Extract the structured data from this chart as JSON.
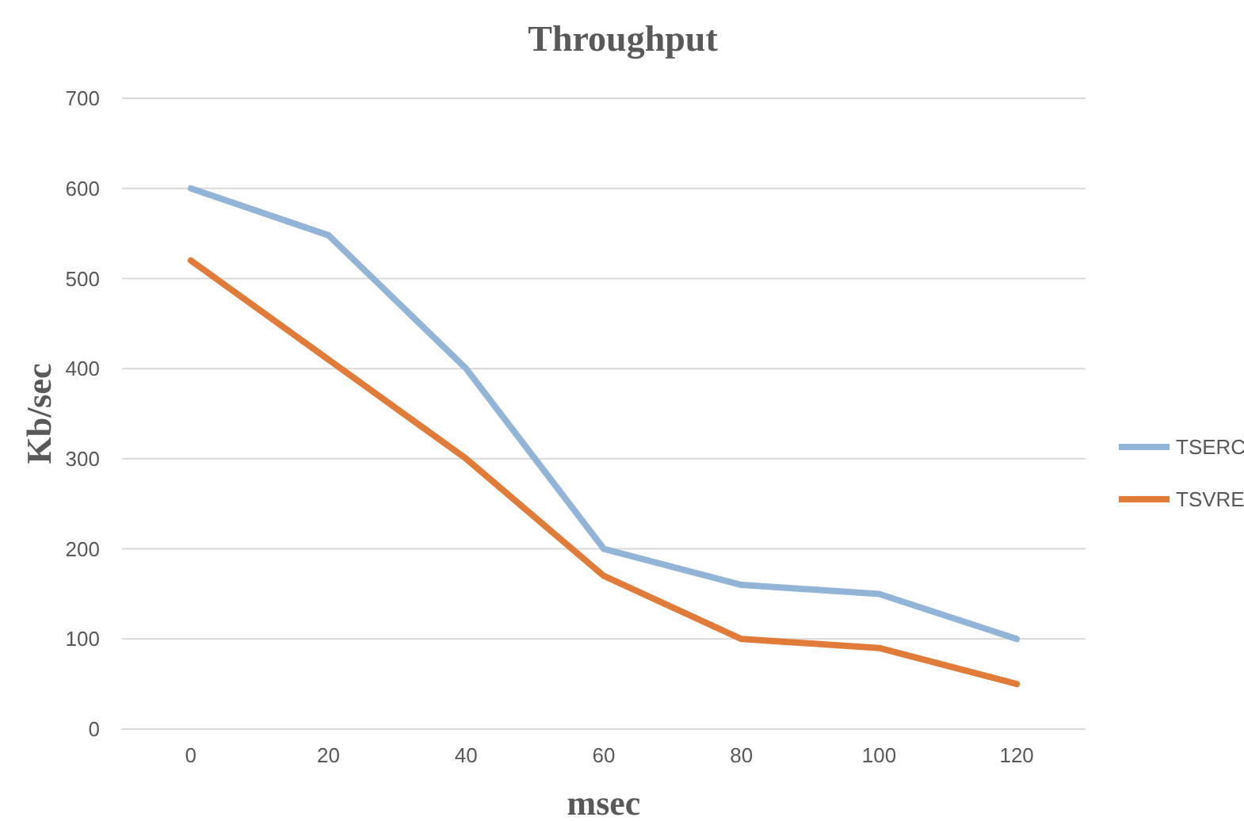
{
  "chart_data": {
    "type": "line",
    "title": "Throughput",
    "xlabel": "msec",
    "ylabel": "Kb/sec",
    "categories": [
      "0",
      "20",
      "40",
      "60",
      "80",
      "100",
      "120"
    ],
    "series": [
      {
        "name": "TSERC",
        "color": "#92b4d7",
        "values": [
          600,
          548,
          400,
          200,
          160,
          150,
          100
        ]
      },
      {
        "name": "TSVRE",
        "color": "#e07b39",
        "values": [
          520,
          410,
          300,
          170,
          100,
          90,
          50
        ]
      }
    ],
    "ylim": [
      0,
      700
    ],
    "yticks": [
      0,
      100,
      200,
      300,
      400,
      500,
      600,
      700
    ],
    "grid": "y",
    "legend": "right",
    "marker": "none",
    "line_style": "solid"
  }
}
